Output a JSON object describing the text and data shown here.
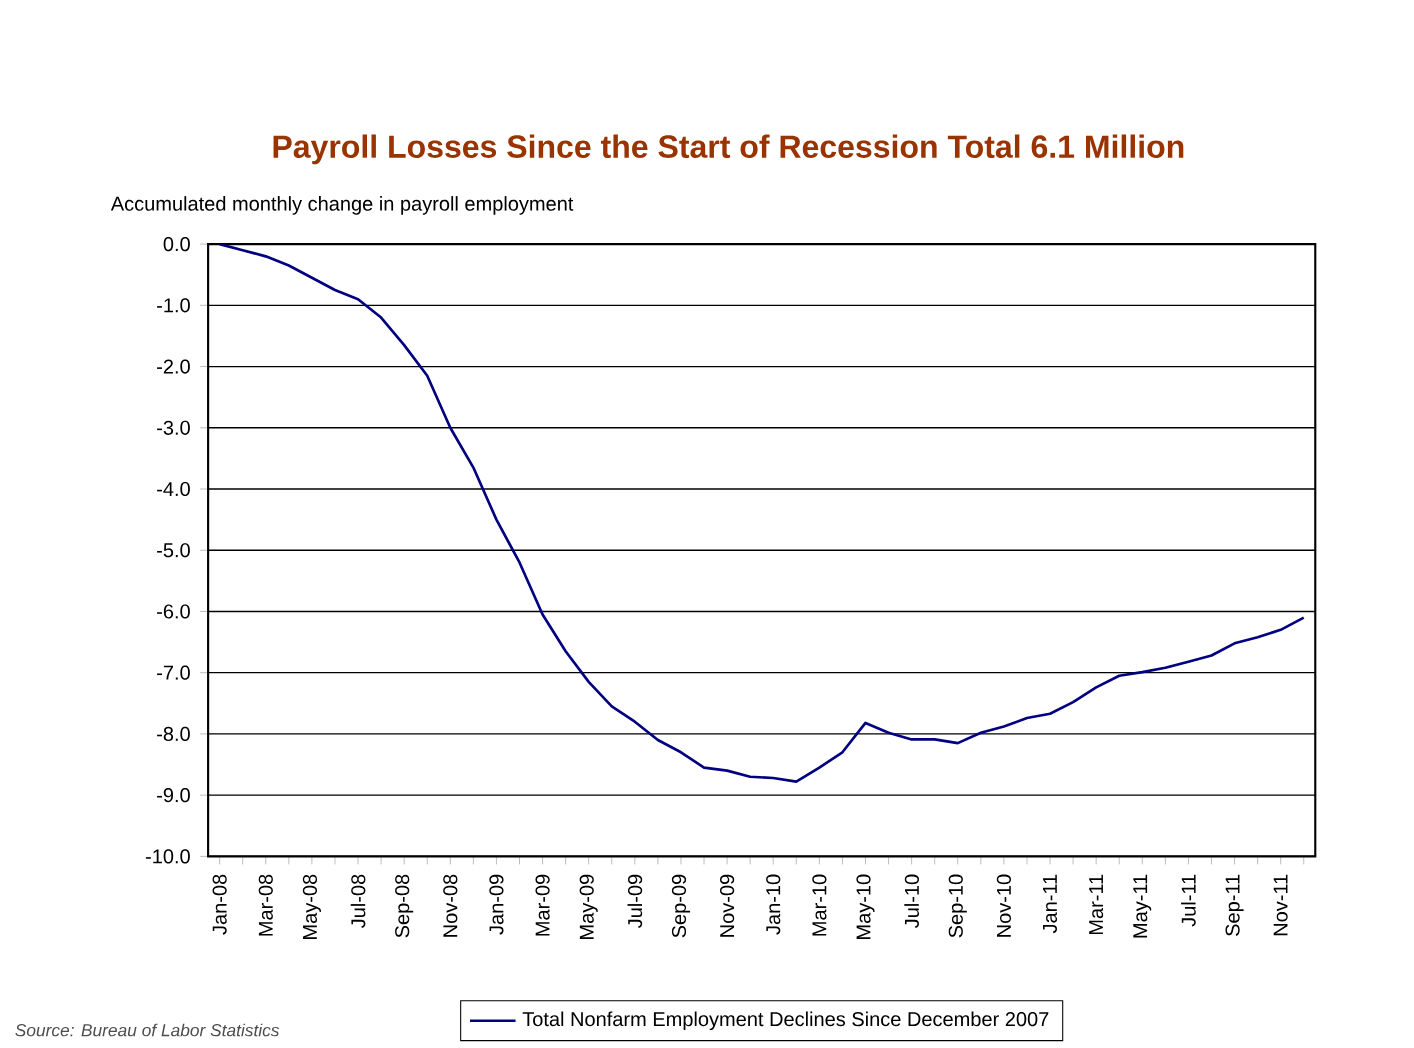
{
  "chart_data": {
    "type": "line",
    "title": "Payroll Losses Since the Start of Recession Total 6.1 Million",
    "ylabel": "Accumulated monthly change in payroll employment",
    "categories": [
      "Jan-08",
      null,
      "Mar-08",
      null,
      "May-08",
      null,
      "Jul-08",
      null,
      "Sep-08",
      null,
      "Nov-08",
      null,
      "Jan-09",
      null,
      "Mar-09",
      null,
      "May-09",
      null,
      "Jul-09",
      null,
      "Sep-09",
      null,
      "Nov-09",
      null,
      "Jan-10",
      null,
      "Mar-10",
      null,
      "May-10",
      null,
      "Jul-10",
      null,
      "Sep-10",
      null,
      "Nov-10",
      null,
      "Jan-11",
      null,
      "Mar-11",
      null,
      "May-11",
      null,
      "Jul-11",
      null,
      "Sep-11",
      null,
      "Nov-11",
      null
    ],
    "series": [
      {
        "name": "Total Nonfarm Employment Declines Since December 2007",
        "color": "#000080",
        "values": [
          0,
          -0.1,
          -0.2,
          -0.35,
          -0.55,
          -0.75,
          -0.9,
          -1.2,
          -1.65,
          -2.15,
          -3.0,
          -3.65,
          -4.5,
          -5.2,
          -6.05,
          -6.65,
          -7.15,
          -7.55,
          -7.8,
          -8.1,
          -8.3,
          -8.55,
          -8.6,
          -8.7,
          -8.72,
          -8.78,
          -8.55,
          -8.3,
          -7.82,
          -7.98,
          -8.09,
          -8.09,
          -8.15,
          -7.98,
          -7.88,
          -7.74,
          -7.67,
          -7.48,
          -7.24,
          -7.05,
          -6.99,
          -6.92,
          -6.82,
          -6.72,
          -6.52,
          -6.42,
          -6.3,
          -6.1
        ]
      }
    ],
    "ylim": [
      -10,
      0
    ],
    "yticks": [
      {
        "value": 0,
        "label": "0.0"
      },
      {
        "value": -1,
        "label": "-1.0"
      },
      {
        "value": -2,
        "label": "-2.0"
      },
      {
        "value": -3,
        "label": "-3.0"
      },
      {
        "value": -4,
        "label": "-4.0"
      },
      {
        "value": -5,
        "label": "-5.0"
      },
      {
        "value": -6,
        "label": "-6.0"
      },
      {
        "value": -7,
        "label": "-7.0"
      },
      {
        "value": -8,
        "label": "-8.0"
      },
      {
        "value": -9,
        "label": "-9.0"
      },
      {
        "value": -10,
        "label": "-10.0"
      }
    ],
    "grid": "y",
    "legend": "bottom",
    "annotations": [
      "Source: Bureau of Labor Statistics"
    ]
  }
}
